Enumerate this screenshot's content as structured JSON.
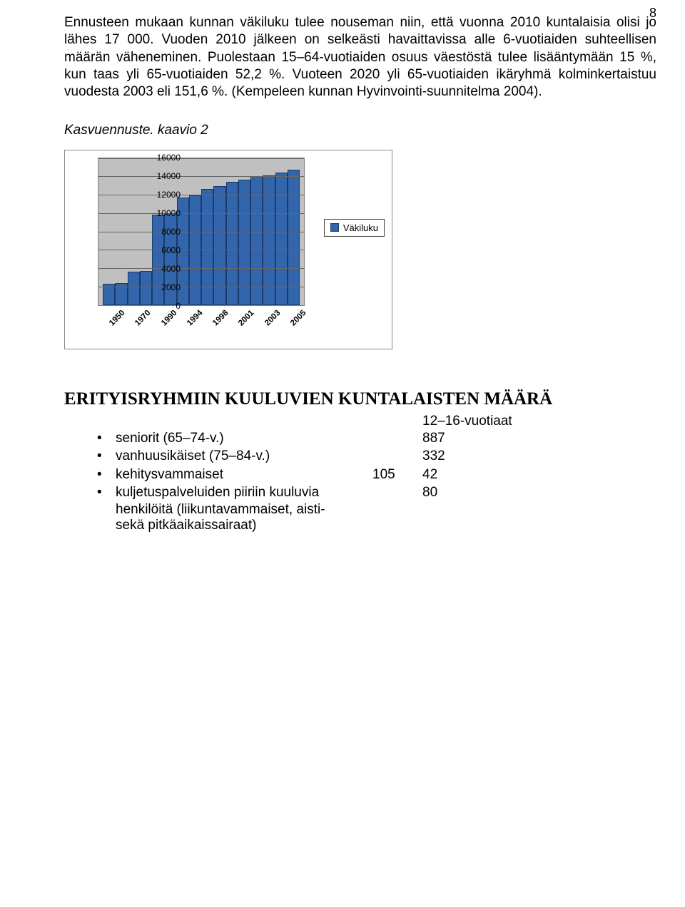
{
  "page_number": "8",
  "paragraph": "Ennusteen mukaan kunnan väkiluku tulee nouseman niin, että vuonna 2010 kuntalaisia olisi jo lähes 17 000. Vuoden 2010 jälkeen on selkeästi havaittavissa alle 6-vuotiaiden suhteellisen määrän väheneminen. Puolestaan 15–64-vuotiaiden osuus väestöstä tulee lisääntymään 15 %, kun taas yli 65-vuotiaiden 52,2 %. Vuoteen 2020 yli 65-vuotiaiden ikäryhmä kolminkertaistuu vuodesta 2003 eli 151,6 %. (Kempeleen kunnan Hyvinvointi-suunnitelma 2004).",
  "chart_caption": "Kasvuennuste. kaavio 2",
  "chart": {
    "type": "bar",
    "categories": [
      "1950",
      "1970",
      "1990",
      "1994",
      "1998",
      "2001",
      "2003",
      "2005"
    ],
    "values": [
      2300,
      2400,
      3600,
      3700,
      9800,
      10000,
      11700,
      11900,
      12600,
      12900,
      13400,
      13600,
      14000,
      14100,
      14400,
      14700
    ],
    "bar_color": "#3265ab",
    "bar_border": "#1a3a6a",
    "plot_bg": "#c0c0c0",
    "grid_color": "#666666",
    "ymax": 16000,
    "ytick_step": 2000,
    "yticks": [
      "0",
      "2000",
      "4000",
      "6000",
      "8000",
      "10000",
      "12000",
      "14000",
      "16000"
    ],
    "legend_label": "Väkiluku"
  },
  "section_heading": "ERITYISRYHMIIN KUULUVIEN KUNTALAISTEN MÄÄRÄ",
  "table": {
    "header_col2": "12–16-vuotiaat",
    "rows": [
      {
        "label": "seniorit (65–74-v.)",
        "c1": "",
        "c2": "887"
      },
      {
        "label": "vanhuusikäiset (75–84-v.)",
        "c1": "",
        "c2": "332"
      },
      {
        "label": "kehitysvammaiset",
        "c1": "105",
        "c2": "42"
      },
      {
        "label": "kuljetuspalveluiden piiriin kuuluvia",
        "c1": "",
        "c2": "80"
      }
    ],
    "indented": [
      "henkilöitä (liikuntavammaiset, aisti-",
      "sekä pitkäaikaissairaat)"
    ]
  }
}
